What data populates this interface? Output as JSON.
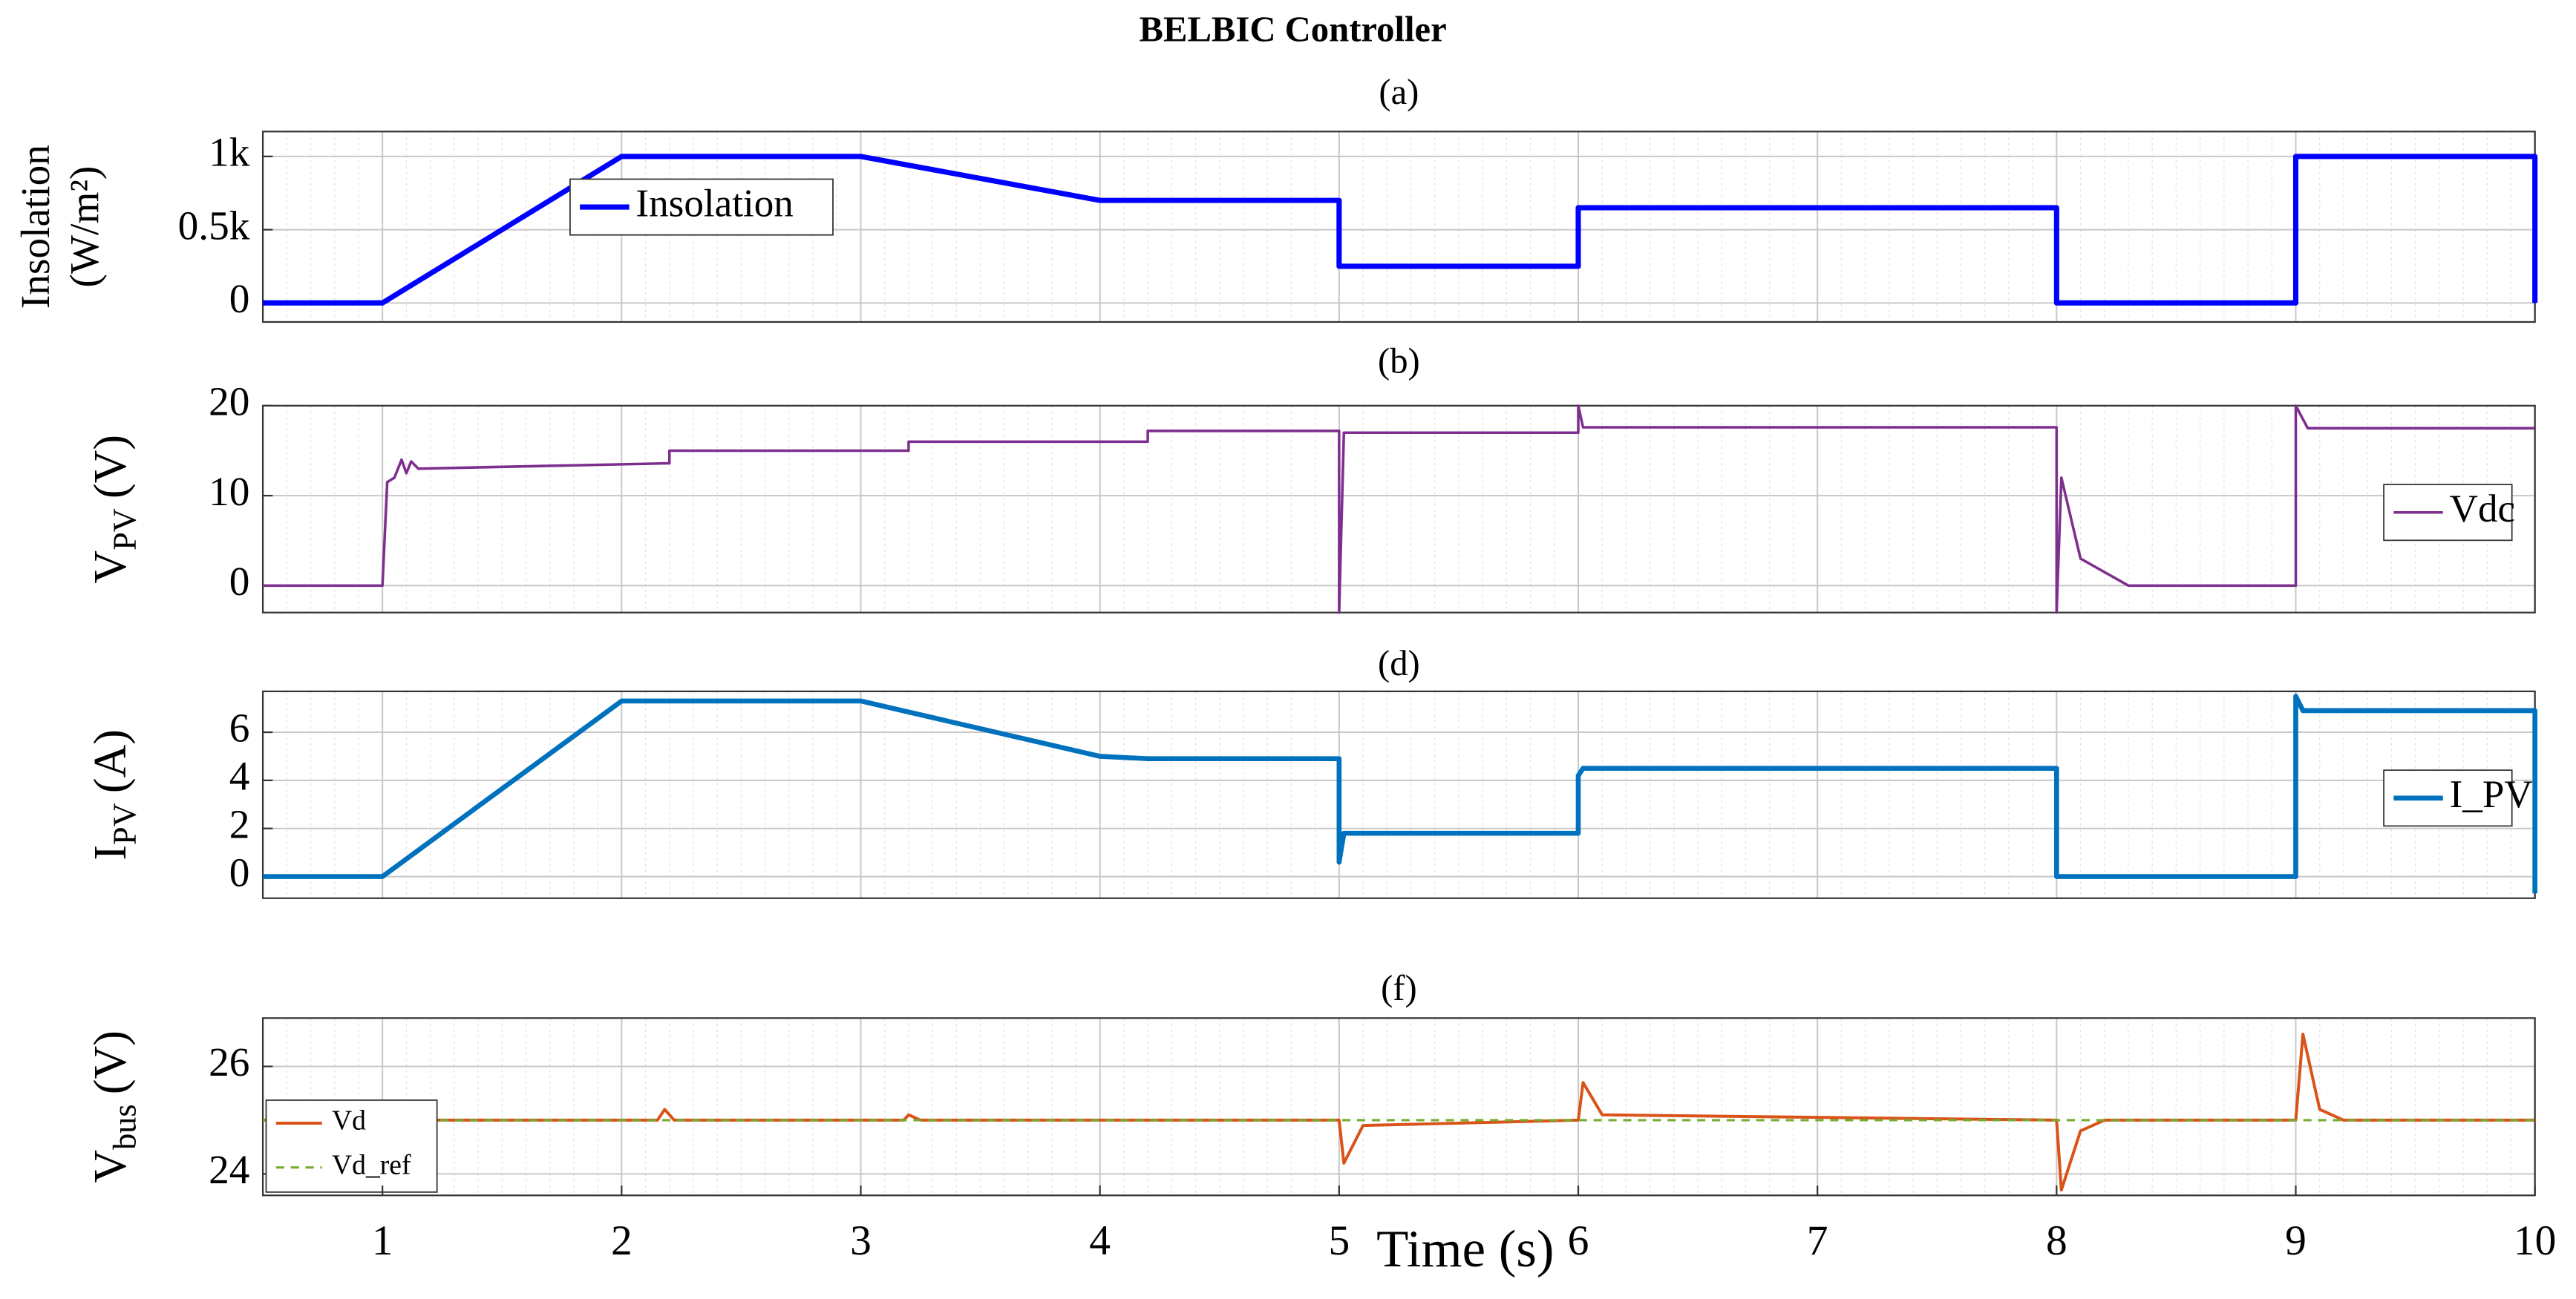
{
  "title": "BELBIC Controller",
  "chart_data": [
    {
      "type": "line",
      "title": "(a)",
      "ylabel": [
        "Insolation",
        "(W/m²)"
      ],
      "xlim": [
        0.5,
        10
      ],
      "ylim": [
        -130,
        1170
      ],
      "yticks": [
        0,
        {
          "value": 500,
          "label": "0.5k"
        },
        {
          "value": 1000,
          "label": "1k"
        }
      ],
      "grid": true,
      "legend": "center left",
      "series": [
        {
          "name": "Insolation",
          "color": "#0000ff",
          "width": 3.2,
          "x": [
            0.5,
            1,
            2,
            3,
            4,
            5,
            5,
            6,
            6,
            8,
            8,
            9,
            9,
            10,
            10
          ],
          "values": [
            0,
            0,
            1000,
            1000,
            700,
            700,
            250,
            250,
            650,
            650,
            0,
            0,
            1000,
            1000,
            0
          ]
        }
      ]
    },
    {
      "type": "line",
      "title": "(b)",
      "ylabel": "V",
      "ylabel_sub": "PV",
      "ylabel_unit": "(V)",
      "xlim": [
        0.5,
        10
      ],
      "ylim": [
        -3,
        20
      ],
      "yticks": [
        0,
        10,
        20
      ],
      "grid": true,
      "legend": "center right",
      "series": [
        {
          "name": "Vdc",
          "color": "#7e2f8e",
          "width": 1.6,
          "x": [
            0.5,
            1,
            1.02,
            1.05,
            1.08,
            1.1,
            1.12,
            1.15,
            2.2,
            2.2,
            3.2,
            3.2,
            4.2,
            4.2,
            5,
            5,
            5.02,
            6,
            6,
            6.02,
            8,
            8,
            8.02,
            8.1,
            8.3,
            9,
            9,
            9.05,
            10
          ],
          "values": [
            0,
            0,
            11.5,
            12,
            14,
            12.5,
            13.8,
            13,
            13.6,
            15,
            15,
            16,
            16,
            17.2,
            17.2,
            -3,
            17,
            17,
            20,
            17.6,
            17.6,
            -3,
            12,
            3,
            0,
            0,
            20,
            17.5,
            17.5
          ]
        }
      ]
    },
    {
      "type": "line",
      "title": "(d)",
      "ylabel": "I",
      "ylabel_sub": "PV",
      "ylabel_unit": "(A)",
      "xlim": [
        0.5,
        10
      ],
      "ylim": [
        -0.9,
        7.7
      ],
      "yticks": [
        0,
        2,
        4,
        6
      ],
      "grid": true,
      "legend": "center right",
      "series": [
        {
          "name": "I_PV",
          "color": "#0072bd",
          "width": 3,
          "x": [
            0.5,
            1,
            2,
            3,
            4,
            4.2,
            5,
            5,
            5.02,
            6,
            6,
            6.02,
            8,
            8,
            9,
            9,
            9.03,
            10,
            10
          ],
          "values": [
            0,
            0,
            7.3,
            7.3,
            5,
            4.9,
            4.9,
            0.6,
            1.8,
            1.8,
            4.2,
            4.5,
            4.5,
            0,
            0,
            7.5,
            6.9,
            6.9,
            -0.7
          ]
        }
      ]
    },
    {
      "type": "line",
      "title": "(f)",
      "ylabel": "V",
      "ylabel_sub": "bus",
      "ylabel_unit": "(V)",
      "xlabel": "Time (s)",
      "xlim": [
        0.5,
        10
      ],
      "ylim": [
        23.6,
        26.9
      ],
      "yticks": [
        24,
        26
      ],
      "xticks": [
        1,
        2,
        3,
        4,
        5,
        6,
        7,
        8,
        9,
        10
      ],
      "grid": true,
      "legend": "lower left",
      "series": [
        {
          "name": "Vd",
          "color": "#d95319",
          "width": 1.8,
          "x": [
            0.5,
            2.15,
            2.18,
            2.22,
            3.18,
            3.2,
            3.25,
            5,
            5.02,
            5.1,
            6,
            6.02,
            6.1,
            8,
            8.02,
            8.1,
            8.2,
            9,
            9.03,
            9.1,
            9.2,
            10
          ],
          "values": [
            25,
            25,
            25.2,
            25,
            25,
            25.1,
            25,
            25,
            24.2,
            24.9,
            25,
            25.7,
            25.1,
            25,
            23.7,
            24.8,
            25,
            25,
            26.6,
            25.2,
            25,
            25
          ]
        },
        {
          "name": "Vd_ref",
          "color": "#77ac30",
          "width": 1.4,
          "dash": true,
          "x": [
            0.5,
            10
          ],
          "values": [
            25,
            25
          ]
        }
      ]
    }
  ]
}
